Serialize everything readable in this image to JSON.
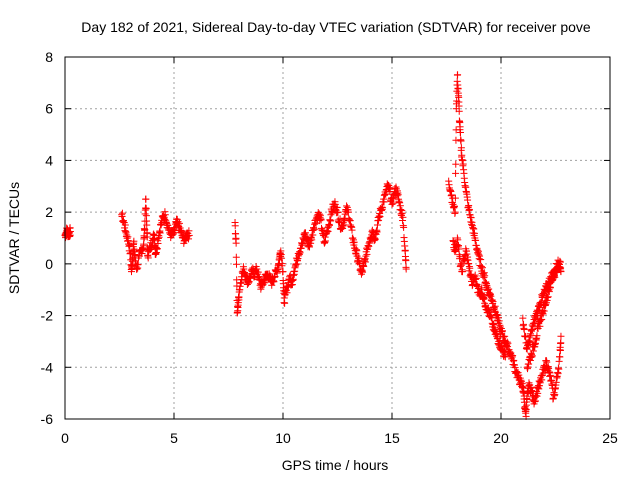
{
  "chart_data": {
    "type": "scatter",
    "title": "Day 182 of 2021, Sidereal Day-to-day VTEC variation (SDTVAR) for receiver pove",
    "xlabel": "GPS time / hours",
    "ylabel": "SDTVAR / TECUs",
    "xlim": [
      0,
      25
    ],
    "ylim": [
      -6,
      8
    ],
    "xticks": [
      0,
      5,
      10,
      15,
      20,
      25
    ],
    "yticks": [
      -6,
      -4,
      -2,
      0,
      2,
      4,
      6,
      8
    ],
    "grid": true,
    "marker": "+",
    "colors": {
      "series": "#ff0000",
      "grid": "#a0a0a0",
      "axis": "#000000"
    },
    "series": [
      {
        "name": "SDTVAR",
        "segments": [
          [
            [
              0.0,
              1.1
            ],
            [
              0.05,
              1.2
            ],
            [
              0.1,
              1.3
            ],
            [
              0.15,
              1.15
            ],
            [
              0.2,
              1.2
            ],
            [
              0.25,
              1.25
            ]
          ],
          [
            [
              2.6,
              1.9
            ],
            [
              2.7,
              1.6
            ],
            [
              2.8,
              1.2
            ],
            [
              2.9,
              0.9
            ],
            [
              3.0,
              0.4
            ],
            [
              3.05,
              -0.3
            ],
            [
              3.1,
              0.2
            ],
            [
              3.15,
              0.8
            ],
            [
              3.2,
              0.3
            ],
            [
              3.3,
              -0.2
            ],
            [
              3.4,
              0.3
            ],
            [
              3.5,
              0.5
            ],
            [
              3.6,
              0.7
            ],
            [
              3.65,
              1.3
            ],
            [
              3.7,
              2.5
            ],
            [
              3.75,
              1.5
            ],
            [
              3.8,
              0.3
            ],
            [
              3.9,
              0.6
            ],
            [
              4.0,
              0.9
            ],
            [
              4.1,
              1.1
            ],
            [
              4.15,
              0.4
            ],
            [
              4.2,
              0.6
            ],
            [
              4.3,
              1.1
            ],
            [
              4.4,
              1.5
            ],
            [
              4.5,
              1.8
            ],
            [
              4.6,
              1.9
            ],
            [
              4.7,
              1.5
            ],
            [
              4.8,
              1.2
            ],
            [
              4.9,
              1.1
            ],
            [
              5.0,
              1.2
            ],
            [
              5.1,
              1.6
            ],
            [
              5.2,
              1.5
            ],
            [
              5.3,
              1.3
            ],
            [
              5.4,
              1.0
            ],
            [
              5.5,
              0.9
            ],
            [
              5.6,
              1.2
            ],
            [
              5.7,
              1.1
            ]
          ],
          [
            [
              7.8,
              1.6
            ],
            [
              7.85,
              0.8
            ],
            [
              7.9,
              -1.9
            ],
            [
              7.95,
              -1.5
            ],
            [
              8.0,
              -1.0
            ],
            [
              8.1,
              -0.5
            ],
            [
              8.2,
              -0.2
            ],
            [
              8.3,
              -0.5
            ],
            [
              8.4,
              -0.7
            ],
            [
              8.5,
              -0.5
            ],
            [
              8.6,
              -0.3
            ],
            [
              8.7,
              -0.4
            ],
            [
              8.8,
              -0.2
            ],
            [
              8.9,
              -0.6
            ],
            [
              9.0,
              -0.9
            ],
            [
              9.1,
              -0.7
            ],
            [
              9.2,
              -0.5
            ],
            [
              9.3,
              -0.4
            ],
            [
              9.4,
              -0.6
            ],
            [
              9.5,
              -0.7
            ],
            [
              9.6,
              -0.5
            ],
            [
              9.7,
              -0.3
            ],
            [
              9.8,
              0.0
            ],
            [
              9.85,
              0.3
            ],
            [
              9.9,
              0.5
            ],
            [
              10.0,
              -0.3
            ],
            [
              10.05,
              -1.5
            ],
            [
              10.1,
              -1.2
            ],
            [
              10.2,
              -0.9
            ],
            [
              10.3,
              -0.5
            ],
            [
              10.4,
              -0.8
            ],
            [
              10.5,
              -0.3
            ],
            [
              10.6,
              0.0
            ],
            [
              10.7,
              0.4
            ],
            [
              10.8,
              0.6
            ],
            [
              10.9,
              0.8
            ],
            [
              11.0,
              1.2
            ],
            [
              11.1,
              0.9
            ],
            [
              11.2,
              0.7
            ],
            [
              11.3,
              1.0
            ],
            [
              11.4,
              1.4
            ],
            [
              11.5,
              1.7
            ],
            [
              11.6,
              1.9
            ],
            [
              11.7,
              1.8
            ],
            [
              11.8,
              1.3
            ],
            [
              11.9,
              0.8
            ],
            [
              12.0,
              1.2
            ],
            [
              12.1,
              1.5
            ],
            [
              12.2,
              1.9
            ],
            [
              12.3,
              2.2
            ],
            [
              12.4,
              2.3
            ],
            [
              12.5,
              2.0
            ],
            [
              12.6,
              1.6
            ],
            [
              12.7,
              1.4
            ],
            [
              12.8,
              1.7
            ],
            [
              12.9,
              2.1
            ],
            [
              13.0,
              2.0
            ],
            [
              13.1,
              1.5
            ],
            [
              13.2,
              1.0
            ],
            [
              13.3,
              0.6
            ],
            [
              13.4,
              0.3
            ],
            [
              13.5,
              0.0
            ],
            [
              13.6,
              -0.4
            ],
            [
              13.7,
              -0.1
            ],
            [
              13.8,
              0.3
            ],
            [
              13.9,
              0.7
            ],
            [
              14.0,
              1.0
            ],
            [
              14.1,
              1.3
            ],
            [
              14.2,
              1.0
            ],
            [
              14.3,
              1.3
            ],
            [
              14.4,
              1.8
            ],
            [
              14.5,
              2.1
            ],
            [
              14.6,
              2.4
            ],
            [
              14.7,
              2.7
            ],
            [
              14.8,
              3.0
            ],
            [
              14.9,
              2.8
            ],
            [
              15.0,
              2.3
            ],
            [
              15.1,
              2.7
            ],
            [
              15.2,
              2.9
            ],
            [
              15.3,
              2.5
            ],
            [
              15.4,
              2.1
            ],
            [
              15.5,
              1.8
            ],
            [
              15.6,
              0.5
            ],
            [
              15.65,
              -0.2
            ]
          ],
          [
            [
              17.6,
              3.2
            ],
            [
              17.7,
              2.8
            ],
            [
              17.8,
              2.3
            ],
            [
              17.9,
              2.0
            ],
            [
              17.95,
              6.0
            ],
            [
              18.0,
              7.3
            ],
            [
              18.05,
              6.5
            ],
            [
              18.1,
              5.5
            ],
            [
              18.15,
              4.8
            ],
            [
              18.2,
              4.2
            ],
            [
              18.3,
              3.5
            ],
            [
              18.4,
              2.8
            ],
            [
              18.5,
              2.2
            ],
            [
              18.6,
              1.8
            ],
            [
              18.7,
              1.4
            ],
            [
              18.8,
              1.0
            ],
            [
              18.9,
              0.6
            ],
            [
              19.0,
              0.2
            ],
            [
              19.1,
              -0.1
            ],
            [
              19.2,
              -0.4
            ],
            [
              19.3,
              -0.7
            ],
            [
              19.4,
              -1.0
            ],
            [
              19.5,
              -1.2
            ],
            [
              19.6,
              -1.4
            ],
            [
              19.7,
              -1.7
            ],
            [
              19.8,
              -2.0
            ],
            [
              19.9,
              -2.3
            ],
            [
              20.0,
              -2.6
            ],
            [
              20.1,
              -2.8
            ],
            [
              20.2,
              -3.0
            ],
            [
              20.3,
              -3.2
            ],
            [
              20.4,
              -3.4
            ],
            [
              20.5,
              -3.6
            ],
            [
              20.6,
              -3.9
            ],
            [
              20.7,
              -4.2
            ],
            [
              20.8,
              -4.4
            ],
            [
              20.9,
              -4.6
            ],
            [
              21.0,
              -4.8
            ],
            [
              21.05,
              -5.0
            ],
            [
              21.1,
              -5.6
            ],
            [
              21.15,
              -5.9
            ],
            [
              21.2,
              -5.0
            ],
            [
              21.3,
              -4.7
            ],
            [
              21.4,
              -4.9
            ],
            [
              21.5,
              -5.3
            ],
            [
              21.6,
              -5.1
            ],
            [
              21.7,
              -4.8
            ],
            [
              21.8,
              -4.6
            ],
            [
              21.9,
              -4.3
            ],
            [
              22.0,
              -4.0
            ],
            [
              22.1,
              -3.8
            ],
            [
              22.2,
              -4.2
            ],
            [
              22.3,
              -4.5
            ],
            [
              22.4,
              -5.2
            ],
            [
              22.5,
              -4.8
            ],
            [
              22.6,
              -4.2
            ],
            [
              22.7,
              -3.6
            ],
            [
              22.75,
              -2.8
            ]
          ],
          [
            [
              17.8,
              0.9
            ],
            [
              17.9,
              0.5
            ],
            [
              18.0,
              1.0
            ],
            [
              18.1,
              0.2
            ],
            [
              18.2,
              -0.3
            ],
            [
              18.3,
              0.2
            ],
            [
              18.4,
              0.5
            ],
            [
              18.5,
              0.0
            ],
            [
              18.6,
              -0.4
            ],
            [
              18.7,
              -0.8
            ],
            [
              18.8,
              -0.5
            ],
            [
              18.9,
              -0.8
            ],
            [
              19.0,
              -1.2
            ],
            [
              19.1,
              -1.0
            ],
            [
              19.2,
              -1.3
            ],
            [
              19.3,
              -1.6
            ],
            [
              19.4,
              -1.8
            ],
            [
              19.5,
              -2.0
            ],
            [
              19.6,
              -2.3
            ],
            [
              19.7,
              -2.6
            ],
            [
              19.8,
              -2.8
            ],
            [
              19.9,
              -3.0
            ],
            [
              20.0,
              -3.2
            ],
            [
              20.1,
              -3.4
            ],
            [
              20.2,
              -3.6
            ]
          ],
          [
            [
              21.0,
              -2.1
            ],
            [
              21.1,
              -2.8
            ],
            [
              21.2,
              -3.3
            ],
            [
              21.3,
              -3.0
            ],
            [
              21.4,
              -2.6
            ],
            [
              21.5,
              -2.3
            ],
            [
              21.6,
              -2.0
            ],
            [
              21.7,
              -1.8
            ],
            [
              21.8,
              -1.5
            ],
            [
              21.9,
              -1.3
            ],
            [
              22.0,
              -1.1
            ],
            [
              22.1,
              -0.9
            ],
            [
              22.2,
              -0.7
            ],
            [
              22.3,
              -0.5
            ],
            [
              22.4,
              -0.4
            ],
            [
              22.5,
              -0.2
            ],
            [
              22.6,
              0.0
            ],
            [
              22.7,
              0.1
            ],
            [
              22.75,
              -0.3
            ]
          ],
          [
            [
              21.2,
              -4.0
            ],
            [
              21.3,
              -3.7
            ],
            [
              21.4,
              -3.5
            ],
            [
              21.5,
              -3.2
            ],
            [
              21.6,
              -2.9
            ],
            [
              21.7,
              -2.5
            ],
            [
              21.8,
              -2.2
            ],
            [
              21.9,
              -1.9
            ],
            [
              22.0,
              -1.6
            ],
            [
              22.1,
              -1.3
            ],
            [
              22.2,
              -1.0
            ],
            [
              22.3,
              -0.7
            ],
            [
              22.4,
              -0.5
            ],
            [
              22.5,
              -0.3
            ],
            [
              22.6,
              -0.1
            ]
          ]
        ]
      }
    ]
  }
}
